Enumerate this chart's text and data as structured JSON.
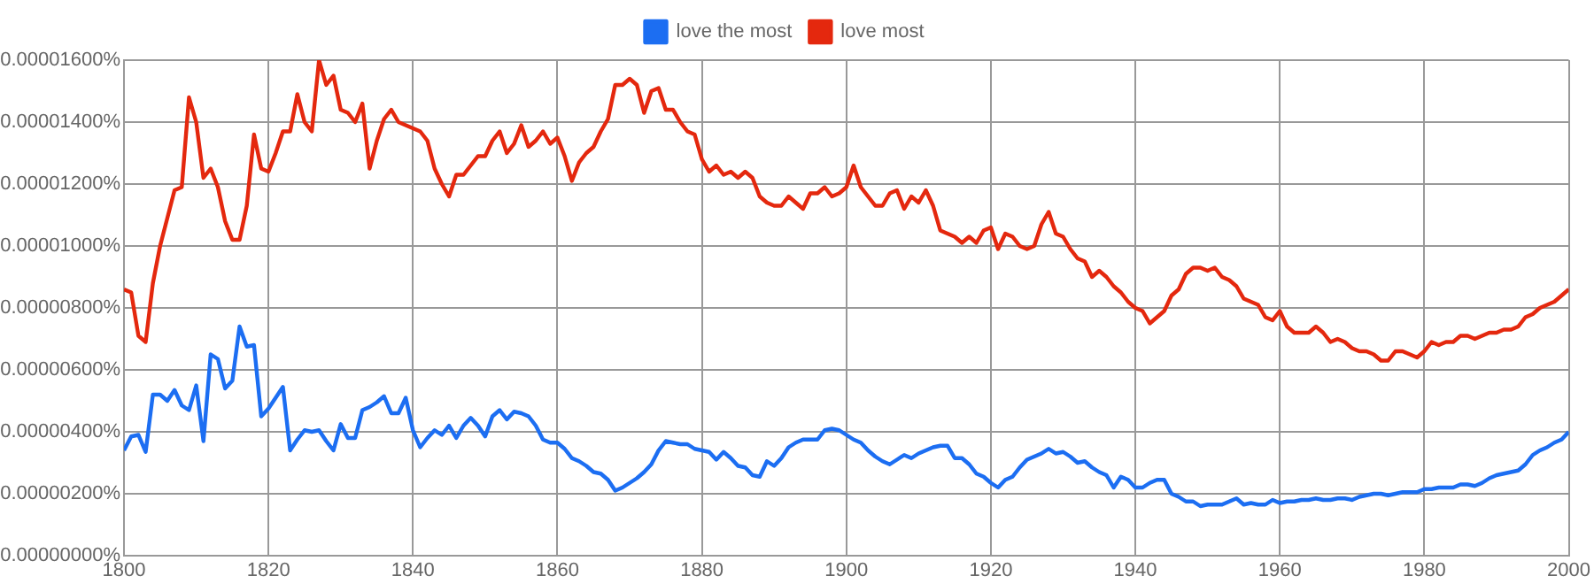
{
  "chart_data": {
    "type": "line",
    "legend": "top",
    "grid": true,
    "marker": "none",
    "line_style": "solid",
    "x": [
      1800,
      1801,
      1802,
      1803,
      1804,
      1805,
      1806,
      1807,
      1808,
      1809,
      1810,
      1811,
      1812,
      1813,
      1814,
      1815,
      1816,
      1817,
      1818,
      1819,
      1820,
      1821,
      1822,
      1823,
      1824,
      1825,
      1826,
      1827,
      1828,
      1829,
      1830,
      1831,
      1832,
      1833,
      1834,
      1835,
      1836,
      1837,
      1838,
      1839,
      1840,
      1841,
      1842,
      1843,
      1844,
      1845,
      1846,
      1847,
      1848,
      1849,
      1850,
      1851,
      1852,
      1853,
      1854,
      1855,
      1856,
      1857,
      1858,
      1859,
      1860,
      1861,
      1862,
      1863,
      1864,
      1865,
      1866,
      1867,
      1868,
      1869,
      1870,
      1871,
      1872,
      1873,
      1874,
      1875,
      1876,
      1877,
      1878,
      1879,
      1880,
      1881,
      1882,
      1883,
      1884,
      1885,
      1886,
      1887,
      1888,
      1889,
      1890,
      1891,
      1892,
      1893,
      1894,
      1895,
      1896,
      1897,
      1898,
      1899,
      1900,
      1901,
      1902,
      1903,
      1904,
      1905,
      1906,
      1907,
      1908,
      1909,
      1910,
      1911,
      1912,
      1913,
      1914,
      1915,
      1916,
      1917,
      1918,
      1919,
      1920,
      1921,
      1922,
      1923,
      1924,
      1925,
      1926,
      1927,
      1928,
      1929,
      1930,
      1931,
      1932,
      1933,
      1934,
      1935,
      1936,
      1937,
      1938,
      1939,
      1940,
      1941,
      1942,
      1943,
      1944,
      1945,
      1946,
      1947,
      1948,
      1949,
      1950,
      1951,
      1952,
      1953,
      1954,
      1955,
      1956,
      1957,
      1958,
      1959,
      1960,
      1961,
      1962,
      1963,
      1964,
      1965,
      1966,
      1967,
      1968,
      1969,
      1970,
      1971,
      1972,
      1973,
      1974,
      1975,
      1976,
      1977,
      1978,
      1979,
      1980,
      1981,
      1982,
      1983,
      1984,
      1985,
      1986,
      1987,
      1988,
      1989,
      1990,
      1991,
      1992,
      1993,
      1994,
      1995,
      1996,
      1997,
      1998,
      1999,
      2000
    ],
    "series": [
      {
        "name": "love the most",
        "color": "#1c6ef2",
        "values": [
          3.4e-06,
          3.85e-06,
          3.9e-06,
          3.35e-06,
          5.2e-06,
          5.2e-06,
          5e-06,
          5.35e-06,
          4.85e-06,
          4.7e-06,
          5.5e-06,
          3.7e-06,
          6.5e-06,
          6.35e-06,
          5.4e-06,
          5.65e-06,
          7.4e-06,
          6.75e-06,
          6.8e-06,
          4.5e-06,
          4.75e-06,
          5.1e-06,
          5.45e-06,
          3.4e-06,
          3.75e-06,
          4.05e-06,
          4e-06,
          4.05e-06,
          3.7e-06,
          3.4e-06,
          4.25e-06,
          3.8e-06,
          3.8e-06,
          4.7e-06,
          4.8e-06,
          4.95e-06,
          5.15e-06,
          4.6e-06,
          4.6e-06,
          5.1e-06,
          4.05e-06,
          3.5e-06,
          3.8e-06,
          4.05e-06,
          3.9e-06,
          4.2e-06,
          3.8e-06,
          4.2e-06,
          4.45e-06,
          4.2e-06,
          3.85e-06,
          4.5e-06,
          4.7e-06,
          4.4e-06,
          4.65e-06,
          4.6e-06,
          4.5e-06,
          4.2e-06,
          3.75e-06,
          3.65e-06,
          3.65e-06,
          3.45e-06,
          3.15e-06,
          3.05e-06,
          2.9e-06,
          2.7e-06,
          2.65e-06,
          2.45e-06,
          2.1e-06,
          2.2e-06,
          2.35e-06,
          2.5e-06,
          2.7e-06,
          2.95e-06,
          3.4e-06,
          3.7e-06,
          3.65e-06,
          3.6e-06,
          3.6e-06,
          3.45e-06,
          3.4e-06,
          3.35e-06,
          3.1e-06,
          3.35e-06,
          3.15e-06,
          2.9e-06,
          2.85e-06,
          2.6e-06,
          2.55e-06,
          3.05e-06,
          2.9e-06,
          3.15e-06,
          3.5e-06,
          3.65e-06,
          3.75e-06,
          3.75e-06,
          3.75e-06,
          4.05e-06,
          4.1e-06,
          4.05e-06,
          3.9e-06,
          3.75e-06,
          3.65e-06,
          3.4e-06,
          3.2e-06,
          3.05e-06,
          2.95e-06,
          3.1e-06,
          3.25e-06,
          3.15e-06,
          3.3e-06,
          3.4e-06,
          3.5e-06,
          3.55e-06,
          3.55e-06,
          3.15e-06,
          3.15e-06,
          2.95e-06,
          2.65e-06,
          2.55e-06,
          2.35e-06,
          2.2e-06,
          2.45e-06,
          2.55e-06,
          2.85e-06,
          3.1e-06,
          3.2e-06,
          3.3e-06,
          3.45e-06,
          3.3e-06,
          3.35e-06,
          3.2e-06,
          3e-06,
          3.05e-06,
          2.85e-06,
          2.7e-06,
          2.6e-06,
          2.2e-06,
          2.55e-06,
          2.45e-06,
          2.2e-06,
          2.2e-06,
          2.35e-06,
          2.45e-06,
          2.45e-06,
          2e-06,
          1.9e-06,
          1.75e-06,
          1.75e-06,
          1.6e-06,
          1.65e-06,
          1.65e-06,
          1.65e-06,
          1.75e-06,
          1.85e-06,
          1.65e-06,
          1.7e-06,
          1.65e-06,
          1.65e-06,
          1.8e-06,
          1.7e-06,
          1.75e-06,
          1.75e-06,
          1.8e-06,
          1.8e-06,
          1.85e-06,
          1.8e-06,
          1.8e-06,
          1.85e-06,
          1.85e-06,
          1.8e-06,
          1.9e-06,
          1.95e-06,
          2e-06,
          2e-06,
          1.95e-06,
          2e-06,
          2.05e-06,
          2.05e-06,
          2.05e-06,
          2.15e-06,
          2.15e-06,
          2.2e-06,
          2.2e-06,
          2.2e-06,
          2.3e-06,
          2.3e-06,
          2.25e-06,
          2.35e-06,
          2.5e-06,
          2.6e-06,
          2.65e-06,
          2.7e-06,
          2.75e-06,
          2.95e-06,
          3.25e-06,
          3.4e-06,
          3.5e-06,
          3.65e-06,
          3.75e-06,
          4e-06
        ]
      },
      {
        "name": "love most",
        "color": "#e4280e",
        "values": [
          8.6e-06,
          8.5e-06,
          7.1e-06,
          6.9e-06,
          8.8e-06,
          1e-05,
          1.09e-05,
          1.18e-05,
          1.19e-05,
          1.48e-05,
          1.4e-05,
          1.22e-05,
          1.25e-05,
          1.19e-05,
          1.08e-05,
          1.02e-05,
          1.02e-05,
          1.13e-05,
          1.36e-05,
          1.25e-05,
          1.24e-05,
          1.3e-05,
          1.37e-05,
          1.37e-05,
          1.49e-05,
          1.4e-05,
          1.37e-05,
          1.6e-05,
          1.52e-05,
          1.55e-05,
          1.44e-05,
          1.43e-05,
          1.4e-05,
          1.46e-05,
          1.25e-05,
          1.34e-05,
          1.41e-05,
          1.44e-05,
          1.4e-05,
          1.39e-05,
          1.38e-05,
          1.37e-05,
          1.34e-05,
          1.25e-05,
          1.2e-05,
          1.16e-05,
          1.23e-05,
          1.23e-05,
          1.26e-05,
          1.29e-05,
          1.29e-05,
          1.34e-05,
          1.37e-05,
          1.3e-05,
          1.33e-05,
          1.39e-05,
          1.32e-05,
          1.34e-05,
          1.37e-05,
          1.33e-05,
          1.35e-05,
          1.29e-05,
          1.21e-05,
          1.27e-05,
          1.3e-05,
          1.32e-05,
          1.37e-05,
          1.41e-05,
          1.52e-05,
          1.52e-05,
          1.54e-05,
          1.52e-05,
          1.43e-05,
          1.5e-05,
          1.51e-05,
          1.44e-05,
          1.44e-05,
          1.4e-05,
          1.37e-05,
          1.36e-05,
          1.28e-05,
          1.24e-05,
          1.26e-05,
          1.23e-05,
          1.24e-05,
          1.22e-05,
          1.24e-05,
          1.22e-05,
          1.16e-05,
          1.14e-05,
          1.13e-05,
          1.13e-05,
          1.16e-05,
          1.14e-05,
          1.12e-05,
          1.17e-05,
          1.17e-05,
          1.19e-05,
          1.16e-05,
          1.17e-05,
          1.19e-05,
          1.26e-05,
          1.19e-05,
          1.16e-05,
          1.13e-05,
          1.13e-05,
          1.17e-05,
          1.18e-05,
          1.12e-05,
          1.16e-05,
          1.14e-05,
          1.18e-05,
          1.13e-05,
          1.05e-05,
          1.04e-05,
          1.03e-05,
          1.01e-05,
          1.03e-05,
          1.01e-05,
          1.05e-05,
          1.06e-05,
          9.9e-06,
          1.04e-05,
          1.03e-05,
          1e-05,
          9.9e-06,
          1e-05,
          1.07e-05,
          1.11e-05,
          1.04e-05,
          1.03e-05,
          9.9e-06,
          9.6e-06,
          9.5e-06,
          9e-06,
          9.2e-06,
          9e-06,
          8.7e-06,
          8.5e-06,
          8.2e-06,
          8e-06,
          7.9e-06,
          7.5e-06,
          7.7e-06,
          7.9e-06,
          8.4e-06,
          8.6e-06,
          9.1e-06,
          9.3e-06,
          9.3e-06,
          9.2e-06,
          9.3e-06,
          9e-06,
          8.9e-06,
          8.7e-06,
          8.3e-06,
          8.2e-06,
          8.1e-06,
          7.7e-06,
          7.6e-06,
          7.9e-06,
          7.4e-06,
          7.2e-06,
          7.2e-06,
          7.2e-06,
          7.4e-06,
          7.2e-06,
          6.9e-06,
          7e-06,
          6.9e-06,
          6.7e-06,
          6.6e-06,
          6.6e-06,
          6.5e-06,
          6.3e-06,
          6.3e-06,
          6.6e-06,
          6.6e-06,
          6.5e-06,
          6.4e-06,
          6.6e-06,
          6.9e-06,
          6.8e-06,
          6.9e-06,
          6.9e-06,
          7.1e-06,
          7.1e-06,
          7e-06,
          7.1e-06,
          7.2e-06,
          7.2e-06,
          7.3e-06,
          7.3e-06,
          7.4e-06,
          7.7e-06,
          7.8e-06,
          8e-06,
          8.1e-06,
          8.2e-06,
          8.4e-06,
          8.6e-06
        ]
      }
    ],
    "xlim": [
      1800,
      2000
    ],
    "xticks": [
      1800,
      1820,
      1840,
      1860,
      1880,
      1900,
      1920,
      1940,
      1960,
      1980,
      2000
    ],
    "ylim": [
      0,
      1.6e-05
    ],
    "yticks": [
      {
        "value": 0,
        "label": "0.00000000%"
      },
      {
        "value": 2e-06,
        "label": "0.00000200%"
      },
      {
        "value": 4e-06,
        "label": "0.00000400%"
      },
      {
        "value": 6e-06,
        "label": "0.00000600%"
      },
      {
        "value": 8e-06,
        "label": "0.00000800%"
      },
      {
        "value": 1e-05,
        "label": "0.00001000%"
      },
      {
        "value": 1.2e-05,
        "label": "0.00001200%"
      },
      {
        "value": 1.4e-05,
        "label": "0.00001400%"
      },
      {
        "value": 1.6e-05,
        "label": "0.00001600%"
      }
    ]
  }
}
